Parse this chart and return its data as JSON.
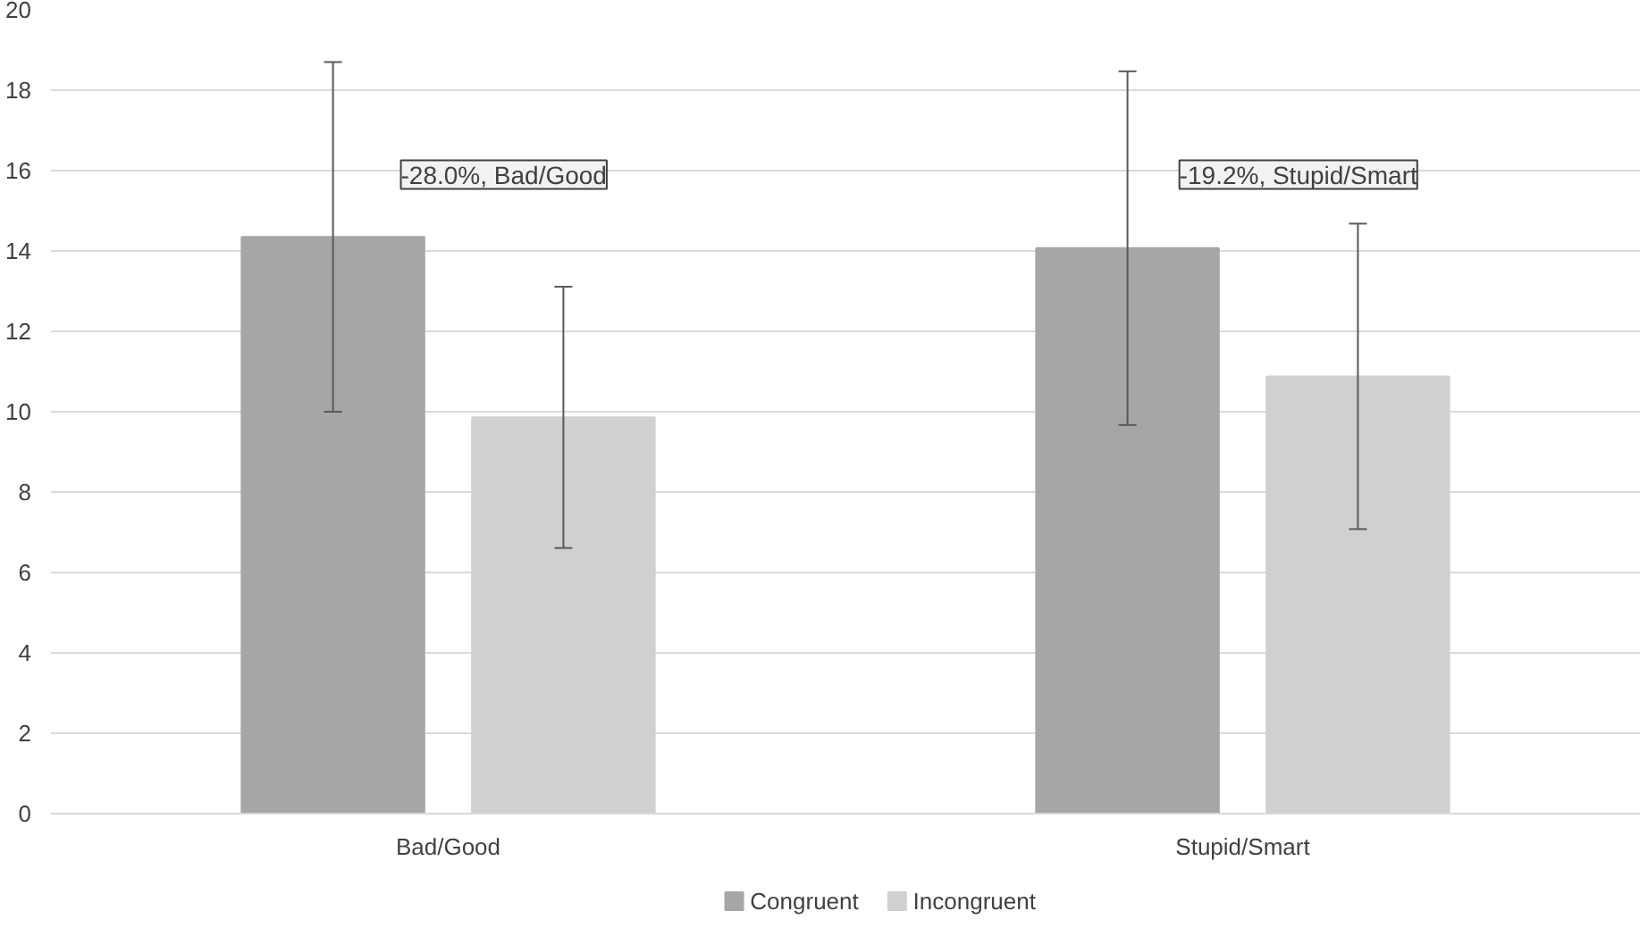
{
  "chart_data": {
    "type": "bar",
    "categories": [
      "Bad/Good",
      "Stupid/Smart"
    ],
    "series": [
      {
        "name": "Congruent",
        "color": "#a6a6a6",
        "values": [
          14.35,
          14.07
        ],
        "errors": [
          4.35,
          4.4
        ]
      },
      {
        "name": "Incongruent",
        "color": "#d0d0d0",
        "values": [
          9.86,
          10.88
        ],
        "errors": [
          3.25,
          3.8
        ]
      }
    ],
    "ylim": [
      0,
      20
    ],
    "yticks": [
      0,
      2,
      4,
      6,
      8,
      10,
      12,
      14,
      16,
      18,
      20
    ],
    "grid": "y",
    "legend": "bottom",
    "annotations": [
      "-28.0%, Bad/Good",
      "-19.2%, Stupid/Smart"
    ]
  }
}
